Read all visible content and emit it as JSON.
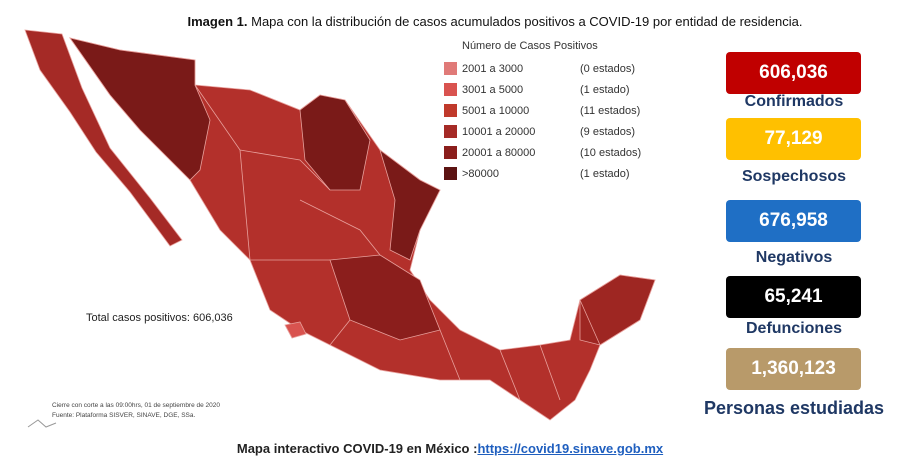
{
  "title": {
    "label": "Imagen 1.",
    "text": "Mapa con la distribución de casos acumulados positivos a COVID-19 por entidad de residencia."
  },
  "legend": {
    "header": "Número de Casos Positivos",
    "items": [
      {
        "range": "2001 a 3000",
        "count": "(0 estados)",
        "color": "#e07a78"
      },
      {
        "range": "3001 a 5000",
        "count": "(1 estado)",
        "color": "#d9534f"
      },
      {
        "range": "5001 a 10000",
        "count": "(11 estados)",
        "color": "#c0392b"
      },
      {
        "range": "10001 a 20000",
        "count": "(9 estados)",
        "color": "#a52a26"
      },
      {
        "range": "20001 a 80000",
        "count": "(10 estados)",
        "color": "#8b1e1c"
      },
      {
        "range": ">80000",
        "count": "(1 estado)",
        "color": "#5c1312"
      }
    ]
  },
  "stats": [
    {
      "value": "606,036",
      "label": "Confirmados",
      "color": "#c00000"
    },
    {
      "value": "77,129",
      "label": "Sospechosos",
      "color": "#ffc000"
    },
    {
      "value": "676,958",
      "label": "Negativos",
      "color": "#1f6fc5"
    },
    {
      "value": "65,241",
      "label": "Defunciones",
      "color": "#000000"
    },
    {
      "value": "1,360,123",
      "label": "Personas estudiadas",
      "color": "#b89a6a"
    }
  ],
  "total": "Total casos positivos: 606,036",
  "notes": [
    "Cierre con corte a las 09:00hrs, 01 de septiembre de 2020",
    "Fuente: Plataforma SISVER, SINAVE, DGE, SSa."
  ],
  "footer": {
    "text": "Mapa interactivo COVID-19 en México :",
    "link": "https://covid19.sinave.gob.mx"
  }
}
